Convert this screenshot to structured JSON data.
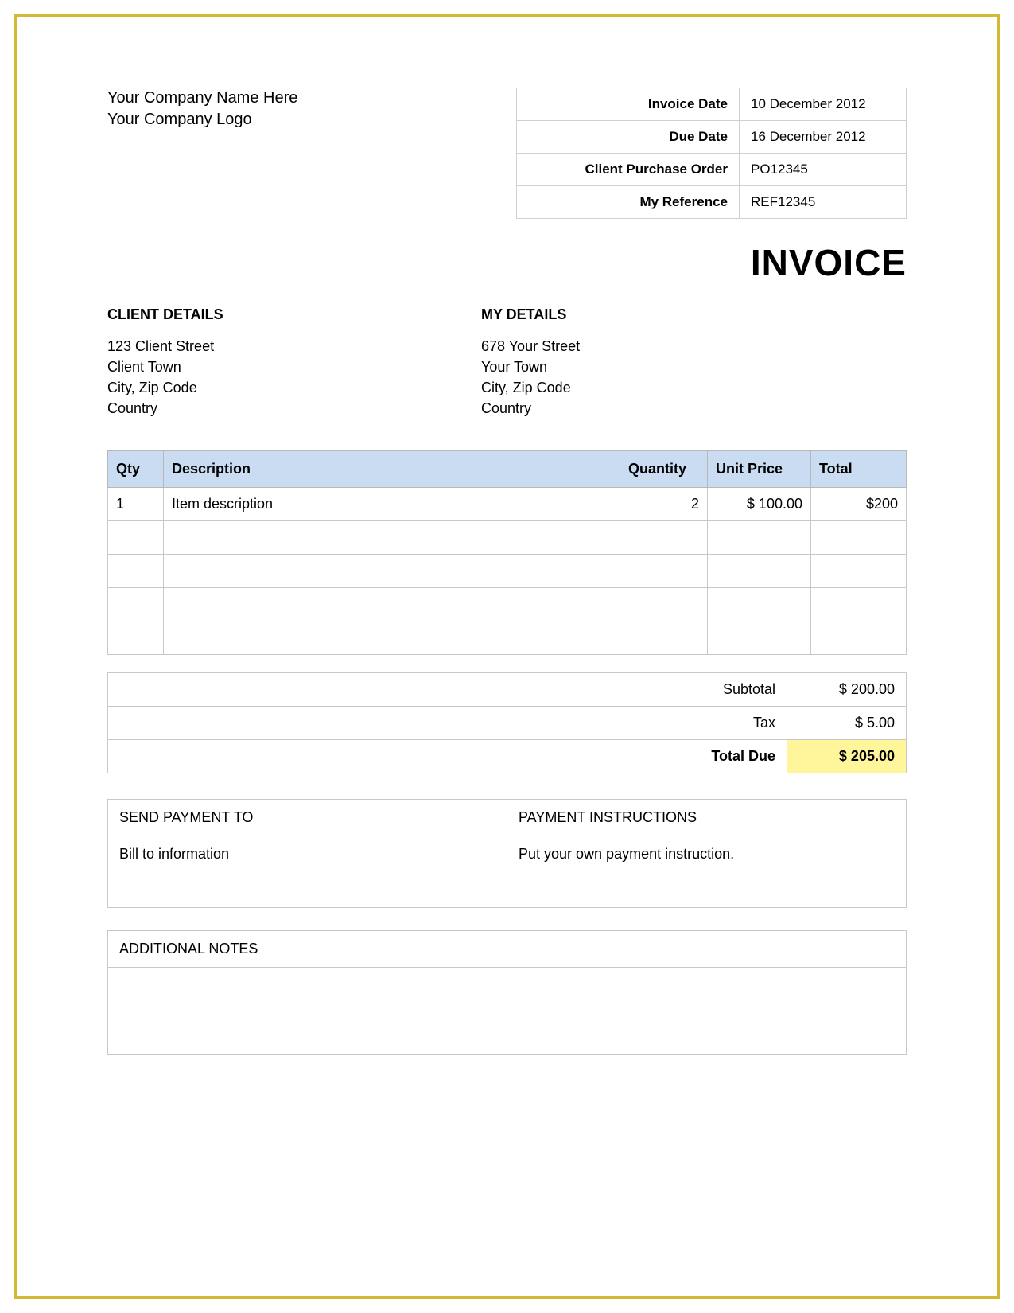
{
  "border_color": "#d4b838",
  "company": {
    "name": "Your Company Name Here",
    "logo": "Your Company Logo"
  },
  "meta": {
    "rows": [
      {
        "label": "Invoice Date",
        "value": "10 December  2012"
      },
      {
        "label": "Due Date",
        "value": "16 December  2012"
      },
      {
        "label": "Client Purchase Order",
        "value": "PO12345"
      },
      {
        "label": "My Reference",
        "value": "REF12345"
      }
    ]
  },
  "title": "INVOICE",
  "client_details": {
    "heading": "CLIENT DETAILS",
    "lines": [
      "123 Client Street",
      "Client Town",
      "City, Zip Code",
      "Country"
    ]
  },
  "my_details": {
    "heading": "MY DETAILS",
    "lines": [
      "678 Your Street",
      "Your Town",
      "City, Zip Code",
      "Country"
    ]
  },
  "items_table": {
    "header_bg": "#c9dcf2",
    "border_color": "#c8c8c8",
    "columns": [
      {
        "key": "qty",
        "label": "Qty",
        "align": "left"
      },
      {
        "key": "description",
        "label": "Description",
        "align": "left"
      },
      {
        "key": "quantity",
        "label": "Quantity",
        "align": "left"
      },
      {
        "key": "unit_price",
        "label": "Unit Price",
        "align": "left"
      },
      {
        "key": "total",
        "label": "Total",
        "align": "left"
      }
    ],
    "rows": [
      {
        "qty": "1",
        "description": "Item description",
        "quantity": "2",
        "unit_price": "$ 100.00",
        "total": "$200"
      },
      {
        "qty": "",
        "description": "",
        "quantity": "",
        "unit_price": "",
        "total": ""
      },
      {
        "qty": "",
        "description": "",
        "quantity": "",
        "unit_price": "",
        "total": ""
      },
      {
        "qty": "",
        "description": "",
        "quantity": "",
        "unit_price": "",
        "total": ""
      },
      {
        "qty": "",
        "description": "",
        "quantity": "",
        "unit_price": "",
        "total": ""
      }
    ]
  },
  "totals": {
    "rows": [
      {
        "label": "Subtotal",
        "value": "$ 200.00",
        "highlight": false,
        "bold": false
      },
      {
        "label": "Tax",
        "value": "$ 5.00",
        "highlight": false,
        "bold": false
      },
      {
        "label": "Total Due",
        "value": "$ 205.00",
        "highlight": true,
        "bold": true
      }
    ],
    "highlight_color": "#fff59a"
  },
  "payment": {
    "left_heading": "SEND PAYMENT TO",
    "right_heading": "PAYMENT INSTRUCTIONS",
    "left_body": "Bill to information",
    "right_body": "Put your own payment instruction."
  },
  "notes": {
    "heading": "ADDITIONAL NOTES",
    "body": ""
  }
}
